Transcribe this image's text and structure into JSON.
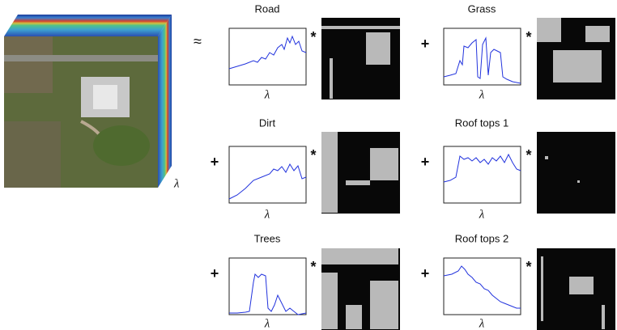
{
  "approx": "≈",
  "cube_label": "λ",
  "panels": [
    {
      "title": "Road",
      "x_label": "λ",
      "times": "*"
    },
    {
      "title": "Grass",
      "x_label": "λ",
      "times": "*",
      "plus": "+"
    },
    {
      "title": "Dirt",
      "x_label": "λ",
      "times": "*",
      "plus": "+"
    },
    {
      "title": "Roof tops 1",
      "x_label": "λ",
      "times": "*",
      "plus": "+"
    },
    {
      "title": "Trees",
      "x_label": "λ",
      "times": "*",
      "plus": "+"
    },
    {
      "title": "Roof tops 2",
      "x_label": "λ",
      "times": "*",
      "plus": "+"
    }
  ]
}
